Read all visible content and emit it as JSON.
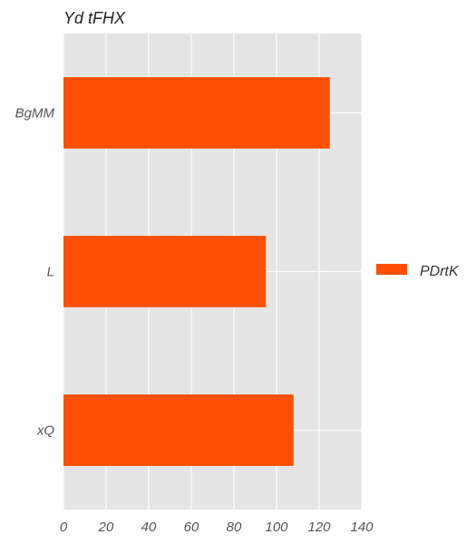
{
  "chart_data": {
    "type": "bar",
    "orientation": "horizontal",
    "title": "Yd tFHX",
    "xlabel": "",
    "ylabel": "",
    "categories": [
      "BgMM",
      "L",
      "xQ"
    ],
    "series": [
      {
        "name": "PDrtK",
        "values": [
          125,
          95,
          108
        ],
        "color": "#ff4f00"
      }
    ],
    "xlim": [
      0,
      140
    ],
    "x_ticks": [
      "0",
      "20",
      "40",
      "60",
      "80",
      "100",
      "120",
      "140"
    ],
    "grid": true,
    "legend_position": "right",
    "colors": {
      "plot_background": "#e5e5e5",
      "grid": "#ffffff",
      "bar": "#ff4f00",
      "text": "#333333",
      "tick_text": "#555555"
    }
  }
}
